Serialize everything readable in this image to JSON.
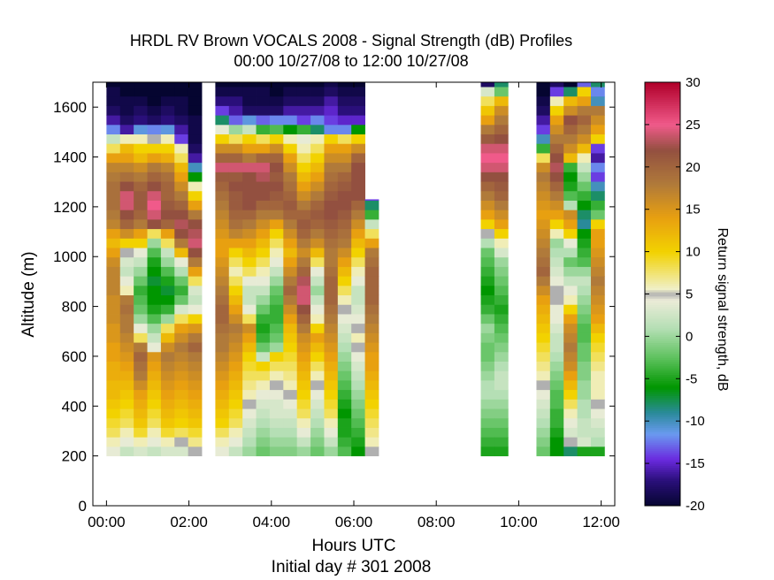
{
  "chart_data": {
    "type": "heatmap",
    "title": "HRDL RV Brown VOCALS 2008 - Signal Strength (dB) Profiles",
    "subtitle": "00:00 10/27/08 to 12:00 10/27/08",
    "xlabel": "Hours UTC",
    "xlabel2": "Initial day # 301  2008",
    "ylabel": "Altitude (m)",
    "colorbar_label": "Return signal strength, dB",
    "xlim": [
      -0.33,
      12.33
    ],
    "ylim": [
      0,
      1700
    ],
    "x_ticks": [
      "00:00",
      "02:00",
      "04:00",
      "06:00",
      "08:00",
      "10:00",
      "12:00"
    ],
    "x_tick_values": [
      0,
      2,
      4,
      6,
      8,
      10,
      12
    ],
    "y_ticks": [
      "0",
      "200",
      "400",
      "600",
      "800",
      "1000",
      "1200",
      "1400",
      "1600"
    ],
    "y_tick_values": [
      0,
      200,
      400,
      600,
      800,
      1000,
      1200,
      1400,
      1600
    ],
    "clim": [
      -20,
      30
    ],
    "colorbar_ticks": [
      "30",
      "25",
      "20",
      "15",
      "10",
      "5",
      "0",
      "-5",
      "-10",
      "-15",
      "-20"
    ],
    "colorbar_tick_values": [
      30,
      25,
      20,
      15,
      10,
      5,
      0,
      -5,
      -10,
      -15,
      -20
    ],
    "colormap": [
      {
        "v": -20,
        "c": "#050530"
      },
      {
        "v": -17,
        "c": "#2a0f7a"
      },
      {
        "v": -14.5,
        "c": "#6a2adf"
      },
      {
        "v": -11.5,
        "c": "#6a9af0"
      },
      {
        "v": -9,
        "c": "#2a8a9a"
      },
      {
        "v": -6,
        "c": "#009600"
      },
      {
        "v": -2.5,
        "c": "#5ec25e"
      },
      {
        "v": 1,
        "c": "#b5dfb5"
      },
      {
        "v": 4.3,
        "c": "#ececd8"
      },
      {
        "v": 5,
        "c": "#b0b0b0"
      },
      {
        "v": 5.6,
        "c": "#f0f0c8"
      },
      {
        "v": 10,
        "c": "#f2d200"
      },
      {
        "v": 14,
        "c": "#e8a010"
      },
      {
        "v": 18,
        "c": "#b07a3a"
      },
      {
        "v": 22,
        "c": "#935040"
      },
      {
        "v": 25,
        "c": "#f05a8a"
      },
      {
        "v": 30,
        "c": "#b0002a"
      }
    ],
    "altitude_bins_m": [
      200,
      238,
      276,
      314,
      352,
      390,
      428,
      466,
      504,
      542,
      580,
      618,
      656,
      694,
      732,
      770,
      808,
      846,
      884,
      922,
      960,
      998,
      1036,
      1074,
      1112,
      1150,
      1188,
      1226,
      1264,
      1302,
      1340,
      1378,
      1416,
      1454,
      1492,
      1530,
      1568,
      1606,
      1644,
      1682
    ],
    "profiles": [
      {
        "t": 0.0,
        "dur": 0.33,
        "top": 1700,
        "sig": [
          4,
          6,
          8,
          9,
          10,
          11,
          12,
          12,
          13,
          13,
          14,
          14,
          15,
          15,
          16,
          16,
          16,
          17,
          17,
          17,
          16,
          14,
          12,
          14,
          17,
          18,
          19,
          19,
          19,
          18,
          17,
          14,
          8,
          2,
          -12,
          -16,
          -18,
          -19,
          -19,
          -20
        ]
      },
      {
        "t": 0.33,
        "dur": 0.33,
        "top": 1700,
        "sig": [
          2,
          4,
          6,
          8,
          9,
          10,
          11,
          12,
          13,
          14,
          15,
          16,
          17,
          18,
          18,
          19,
          18,
          6,
          4,
          2,
          3,
          5,
          10,
          16,
          20,
          22,
          24,
          24,
          22,
          19,
          17,
          14,
          12,
          6,
          -16,
          -18,
          -19,
          -19,
          -20,
          -20
        ]
      },
      {
        "t": 0.66,
        "dur": 0.33,
        "top": 1700,
        "sig": [
          3,
          6,
          9,
          11,
          12,
          13,
          14,
          16,
          18,
          19,
          20,
          18,
          8,
          4,
          0,
          -2,
          -3,
          -4,
          -2,
          0,
          2,
          4,
          10,
          14,
          18,
          20,
          21,
          21,
          20,
          18,
          16,
          12,
          10,
          6,
          -11,
          -17,
          -18,
          -19,
          -20,
          -20
        ]
      },
      {
        "t": 0.99,
        "dur": 0.33,
        "top": 1700,
        "sig": [
          2,
          4,
          6,
          8,
          9,
          10,
          11,
          12,
          13,
          14,
          15,
          4,
          2,
          0,
          -3,
          -5,
          -6,
          -6,
          -7,
          -6,
          -5,
          -3,
          0,
          8,
          22,
          24,
          25,
          24,
          22,
          20,
          18,
          14,
          10,
          5,
          -12,
          -18,
          -19,
          -20,
          -20,
          -20
        ]
      },
      {
        "t": 1.32,
        "dur": 0.33,
        "top": 1700,
        "sig": [
          3,
          6,
          9,
          11,
          12,
          13,
          14,
          15,
          16,
          17,
          18,
          16,
          12,
          8,
          0,
          -4,
          -6,
          -7,
          -5,
          -3,
          0,
          2,
          8,
          14,
          20,
          22,
          21,
          20,
          20,
          19,
          17,
          13,
          10,
          6,
          -11,
          -17,
          -18,
          -19,
          -20,
          -20
        ]
      },
      {
        "t": 1.65,
        "dur": 0.33,
        "top": 1700,
        "sig": [
          3,
          5,
          8,
          10,
          11,
          12,
          13,
          14,
          15,
          16,
          17,
          18,
          16,
          14,
          8,
          3,
          -2,
          -4,
          -2,
          1,
          4,
          12,
          18,
          22,
          23,
          22,
          20,
          18,
          16,
          14,
          12,
          8,
          6,
          -14,
          -16,
          -18,
          -19,
          -19,
          -20,
          -20
        ]
      },
      {
        "t": 1.98,
        "dur": 0.33,
        "top": 1700,
        "sig": [
          5,
          7,
          9,
          11,
          12,
          13,
          14,
          15,
          16,
          17,
          18,
          20,
          18,
          15,
          10,
          4,
          2,
          3,
          8,
          14,
          18,
          22,
          24,
          23,
          22,
          18,
          14,
          10,
          6,
          -6,
          -10,
          -16,
          -18,
          -19,
          -19,
          -19,
          -20,
          -20,
          -20,
          -20
        ]
      },
      {
        "t": 2.64,
        "dur": 0.33,
        "top": 1700,
        "sig": [
          4,
          6,
          8,
          10,
          11,
          12,
          13,
          14,
          15,
          16,
          17,
          18,
          18,
          19,
          20,
          20,
          19,
          18,
          17,
          16,
          15,
          14,
          14,
          15,
          16,
          17,
          18,
          19,
          20,
          21,
          24,
          20,
          16,
          10,
          4,
          -8,
          -14,
          -17,
          -19,
          -20
        ]
      },
      {
        "t": 2.97,
        "dur": 0.33,
        "top": 1700,
        "sig": [
          2,
          4,
          6,
          8,
          9,
          10,
          11,
          12,
          13,
          14,
          15,
          16,
          17,
          18,
          16,
          14,
          12,
          10,
          8,
          6,
          8,
          10,
          14,
          17,
          19,
          20,
          21,
          21,
          22,
          21,
          24,
          20,
          16,
          8,
          0,
          -13,
          -16,
          -17,
          -19,
          -20
        ]
      },
      {
        "t": 3.3,
        "dur": 0.33,
        "top": 1700,
        "sig": [
          0,
          1,
          2,
          3,
          4,
          5,
          6,
          7,
          8,
          9,
          10,
          12,
          14,
          16,
          8,
          4,
          2,
          2,
          4,
          8,
          10,
          12,
          14,
          16,
          18,
          20,
          22,
          22,
          22,
          22,
          24,
          18,
          14,
          10,
          2,
          -11,
          -18,
          -19,
          -19,
          -20
        ]
      },
      {
        "t": 3.63,
        "dur": 0.33,
        "top": 1700,
        "sig": [
          -2,
          -1,
          0,
          1,
          2,
          3,
          4,
          6,
          8,
          10,
          2,
          -2,
          -4,
          -5,
          -4,
          -2,
          0,
          2,
          4,
          6,
          8,
          10,
          12,
          14,
          16,
          18,
          20,
          22,
          22,
          23,
          24,
          20,
          14,
          8,
          -4,
          -13,
          -18,
          -19,
          -19,
          -20
        ]
      },
      {
        "t": 3.96,
        "dur": 0.33,
        "top": 1700,
        "sig": [
          -1,
          0,
          1,
          2,
          3,
          3,
          4,
          5,
          6,
          8,
          10,
          0,
          -2,
          -3,
          -4,
          -4,
          -3,
          -2,
          0,
          2,
          4,
          6,
          8,
          10,
          14,
          18,
          20,
          21,
          22,
          21,
          22,
          20,
          16,
          10,
          -3,
          -12,
          -18,
          -19,
          -20,
          -20
        ]
      },
      {
        "t": 4.29,
        "dur": 0.33,
        "top": 1700,
        "sig": [
          -1,
          0,
          1,
          2,
          3,
          4,
          5,
          6,
          7,
          8,
          9,
          10,
          11,
          12,
          14,
          16,
          18,
          20,
          18,
          16,
          14,
          12,
          14,
          16,
          18,
          20,
          21,
          20,
          19,
          18,
          16,
          14,
          10,
          6,
          -6,
          -12,
          -16,
          -18,
          -19,
          -20
        ]
      },
      {
        "t": 4.62,
        "dur": 0.33,
        "top": 1700,
        "sig": [
          0,
          2,
          4,
          6,
          8,
          9,
          10,
          11,
          12,
          13,
          14,
          15,
          16,
          18,
          20,
          22,
          24,
          24,
          23,
          20,
          18,
          16,
          18,
          20,
          21,
          20,
          18,
          16,
          14,
          12,
          10,
          8,
          6,
          4,
          -4,
          -14,
          -16,
          -18,
          -19,
          -20
        ]
      },
      {
        "t": 4.95,
        "dur": 0.33,
        "top": 1700,
        "sig": [
          -2,
          -1,
          0,
          1,
          2,
          3,
          4,
          5,
          6,
          8,
          10,
          12,
          14,
          10,
          6,
          4,
          2,
          0,
          2,
          4,
          8,
          12,
          16,
          18,
          20,
          21,
          20,
          18,
          16,
          14,
          12,
          10,
          8,
          6,
          -8,
          -12,
          -16,
          -18,
          -19,
          -20
        ]
      },
      {
        "t": 5.28,
        "dur": 0.33,
        "top": 1700,
        "sig": [
          0,
          2,
          4,
          6,
          8,
          9,
          10,
          11,
          12,
          13,
          14,
          15,
          16,
          17,
          18,
          19,
          20,
          20,
          20,
          19,
          18,
          18,
          19,
          20,
          21,
          22,
          22,
          21,
          20,
          19,
          18,
          16,
          14,
          10,
          -12,
          -14,
          -15,
          -16,
          -18,
          -19
        ]
      },
      {
        "t": 5.61,
        "dur": 0.33,
        "top": 1700,
        "sig": [
          -3,
          -4,
          -5,
          -5,
          -6,
          -5,
          -4,
          -3,
          -2,
          -1,
          0,
          1,
          2,
          3,
          4,
          5,
          6,
          8,
          10,
          12,
          14,
          16,
          18,
          19,
          20,
          21,
          22,
          22,
          21,
          20,
          18,
          16,
          14,
          8,
          -12,
          -15,
          -17,
          -18,
          -19,
          -20
        ]
      },
      {
        "t": 5.94,
        "dur": 0.33,
        "top": 1700,
        "sig": [
          -6,
          -5,
          -4,
          -3,
          -2,
          -1,
          0,
          1,
          2,
          3,
          4,
          5,
          6,
          5,
          4,
          3,
          2,
          2,
          4,
          6,
          8,
          10,
          12,
          14,
          16,
          18,
          20,
          22,
          22,
          22,
          22,
          20,
          16,
          10,
          -6,
          -15,
          -17,
          -18,
          -19,
          -20
        ]
      },
      {
        "t": 6.27,
        "dur": 0.33,
        "top": 1230,
        "sig": [
          5,
          6,
          7,
          8,
          9,
          10,
          11,
          12,
          13,
          14,
          14,
          15,
          16,
          17,
          18,
          19,
          20,
          20,
          20,
          20,
          19,
          18,
          14,
          8,
          2,
          -4,
          -8,
          -14
        ]
      },
      {
        "t": 9.08,
        "dur": 0.33,
        "top": 1700,
        "sig": [
          -5,
          -4,
          -3,
          -2,
          -1,
          0,
          1,
          1,
          0,
          -1,
          -2,
          -2,
          -1,
          0,
          -2,
          -4,
          -5,
          -6,
          -5,
          -4,
          -3,
          -2,
          1,
          5,
          10,
          14,
          16,
          18,
          20,
          22,
          24,
          25,
          24,
          21,
          18,
          14,
          11,
          8,
          3,
          -18
        ]
      },
      {
        "t": 9.41,
        "dur": 0.33,
        "top": 1700,
        "sig": [
          -5,
          -4,
          -3,
          -2,
          -1,
          0,
          1,
          2,
          2,
          1,
          0,
          -1,
          -2,
          -3,
          -4,
          -5,
          -4,
          -3,
          -2,
          -1,
          0,
          3,
          6,
          10,
          14,
          16,
          18,
          20,
          21,
          22,
          24,
          25,
          24,
          22,
          20,
          18,
          16,
          12,
          -2,
          -8
        ]
      },
      {
        "t": 10.43,
        "dur": 0.33,
        "top": 1700,
        "sig": [
          -2,
          -1,
          0,
          1,
          2,
          3,
          4,
          5,
          6,
          7,
          8,
          9,
          10,
          11,
          12,
          13,
          14,
          16,
          18,
          20,
          19,
          18,
          17,
          16,
          15,
          14,
          15,
          16,
          17,
          18,
          16,
          8,
          -4,
          -10,
          -14,
          -16,
          -18,
          -19,
          -20,
          -20
        ]
      },
      {
        "t": 10.76,
        "dur": 0.33,
        "top": 1700,
        "sig": [
          -6,
          -6,
          -5,
          -4,
          -4,
          -3,
          -3,
          -2,
          -1,
          0,
          1,
          2,
          2,
          3,
          4,
          4,
          5,
          5,
          4,
          3,
          2,
          1,
          0,
          6,
          10,
          14,
          16,
          18,
          20,
          22,
          23,
          22,
          20,
          18,
          16,
          14,
          10,
          6,
          -14,
          -18
        ]
      },
      {
        "t": 11.09,
        "dur": 0.33,
        "top": 1700,
        "sig": [
          -8,
          5,
          3,
          4,
          6,
          8,
          10,
          12,
          14,
          16,
          17,
          18,
          17,
          16,
          14,
          10,
          6,
          4,
          2,
          0,
          -2,
          1,
          4,
          10,
          14,
          16,
          1,
          -3,
          -5,
          -6,
          -4,
          12,
          16,
          18,
          20,
          22,
          16,
          12,
          -8,
          -20
        ]
      },
      {
        "t": 11.42,
        "dur": 0.33,
        "top": 1700,
        "sig": [
          -5,
          3,
          2,
          2,
          1,
          1,
          0,
          0,
          -1,
          -1,
          -2,
          -2,
          -3,
          -3,
          -2,
          -1,
          0,
          1,
          2,
          0,
          -3,
          -4,
          -5,
          -6,
          -9,
          -8,
          -6,
          -4,
          -2,
          0,
          2,
          6,
          12,
          16,
          18,
          20,
          18,
          14,
          10,
          -13
        ]
      },
      {
        "t": 11.75,
        "dur": 0.33,
        "top": 1700,
        "sig": [
          -5,
          1,
          2,
          3,
          4,
          5,
          6,
          6,
          6,
          7,
          8,
          9,
          10,
          12,
          14,
          15,
          16,
          17,
          18,
          17,
          16,
          15,
          14,
          14,
          10,
          -2,
          -4,
          -8,
          -10,
          -14,
          -12,
          -16,
          -14,
          10,
          14,
          16,
          18,
          -10,
          -12,
          -8
        ]
      }
    ]
  }
}
